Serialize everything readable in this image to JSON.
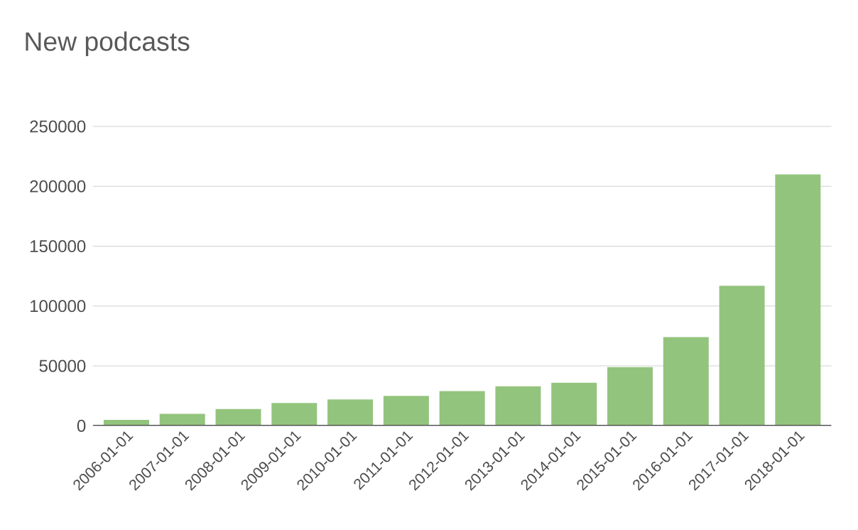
{
  "chart_data": {
    "type": "bar",
    "title": "New podcasts",
    "categories": [
      "2006-01-01",
      "2007-01-01",
      "2008-01-01",
      "2009-01-01",
      "2010-01-01",
      "2011-01-01",
      "2012-01-01",
      "2013-01-01",
      "2014-01-01",
      "2015-01-01",
      "2016-01-01",
      "2017-01-01",
      "2018-01-01"
    ],
    "values": [
      5000,
      10000,
      14000,
      19000,
      22000,
      25000,
      29000,
      33000,
      36000,
      49000,
      74000,
      117000,
      210000
    ],
    "color": "#93c47d",
    "ylim": [
      0,
      250000
    ],
    "yticks": [
      0,
      50000,
      100000,
      150000,
      200000,
      250000
    ],
    "grid": "y"
  }
}
